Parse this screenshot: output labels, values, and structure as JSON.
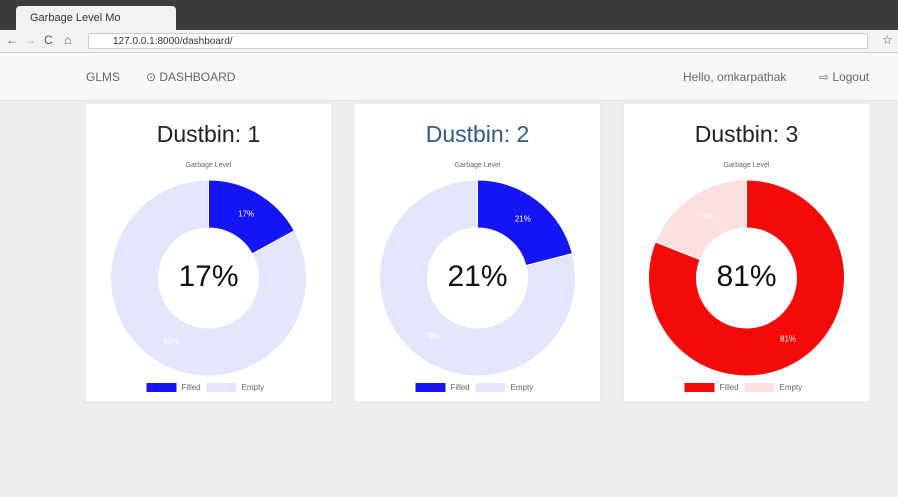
{
  "browser": {
    "tab_title": "Garbage Level Mo",
    "url": "127.0.0.1:8000/dashboard/"
  },
  "nav": {
    "brand": "GLMS",
    "dashboard": "DASHBOARD",
    "greeting": "Hello, omkarpathak",
    "logout": "Logout"
  },
  "chart_data": [
    {
      "type": "doughnut",
      "title": "Dustbin: 1",
      "subtitle": "Garbage Level",
      "categories": [
        "Filled",
        "Empty"
      ],
      "values": [
        17,
        83
      ],
      "value_labels": [
        "17%",
        "83%"
      ],
      "colors": [
        "#1414f5",
        "#e4e4fb"
      ]
    },
    {
      "type": "doughnut",
      "title": "Dustbin: 2",
      "subtitle": "Garbage Level",
      "categories": [
        "Filled",
        "Empty"
      ],
      "values": [
        21,
        79
      ],
      "value_labels": [
        "21%",
        "79%"
      ],
      "colors": [
        "#1414f5",
        "#e4e4fb"
      ]
    },
    {
      "type": "doughnut",
      "title": "Dustbin: 3",
      "subtitle": "Garbage Level",
      "categories": [
        "Filled",
        "Empty"
      ],
      "values": [
        81,
        19
      ],
      "value_labels": [
        "81%",
        "19%"
      ],
      "colors": [
        "#f50a0a",
        "#fce0e0"
      ]
    }
  ]
}
